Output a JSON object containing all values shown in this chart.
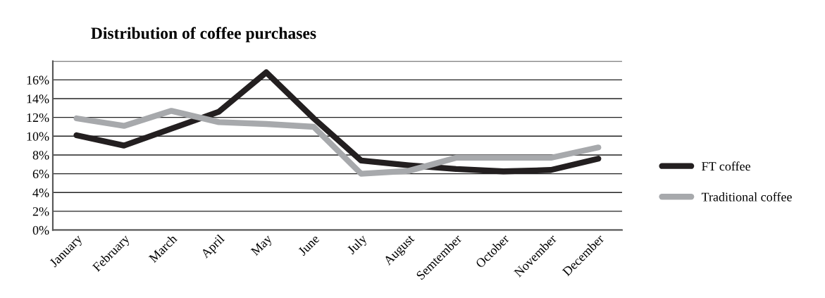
{
  "chart_data": {
    "type": "line",
    "title": "Distribution of coffee purchases",
    "categories": [
      "January",
      "February",
      "March",
      "April",
      "May",
      "June",
      "July",
      "August",
      "Semtember",
      "October",
      "November",
      "December"
    ],
    "series": [
      {
        "name": "FT coffee",
        "color": "#231f20",
        "values": [
          10.1,
          9.0,
          10.8,
          12.6,
          16.8,
          11.9,
          7.4,
          6.9,
          6.5,
          6.25,
          6.4,
          7.6
        ]
      },
      {
        "name": "Traditional coffee",
        "color": "#a7a9ac",
        "values": [
          11.9,
          11.1,
          12.7,
          11.5,
          11.3,
          11.0,
          6.0,
          6.3,
          7.7,
          7.7,
          7.7,
          8.8
        ]
      }
    ],
    "ylim": [
      0,
      18
    ],
    "yticks": [
      {
        "value": 0,
        "label": "0%"
      },
      {
        "value": 2,
        "label": "2%"
      },
      {
        "value": 4,
        "label": "4%"
      },
      {
        "value": 6,
        "label": "6%"
      },
      {
        "value": 8,
        "label": "8%"
      },
      {
        "value": 10,
        "label": "10%"
      },
      {
        "value": 12,
        "label": "12%"
      },
      {
        "value": 14,
        "label": "14%"
      },
      {
        "value": 16,
        "label": "16%"
      },
      {
        "value": 18,
        "label": null
      }
    ],
    "grid": "y",
    "legend": "right",
    "marker": "none",
    "line_style": "solid"
  }
}
